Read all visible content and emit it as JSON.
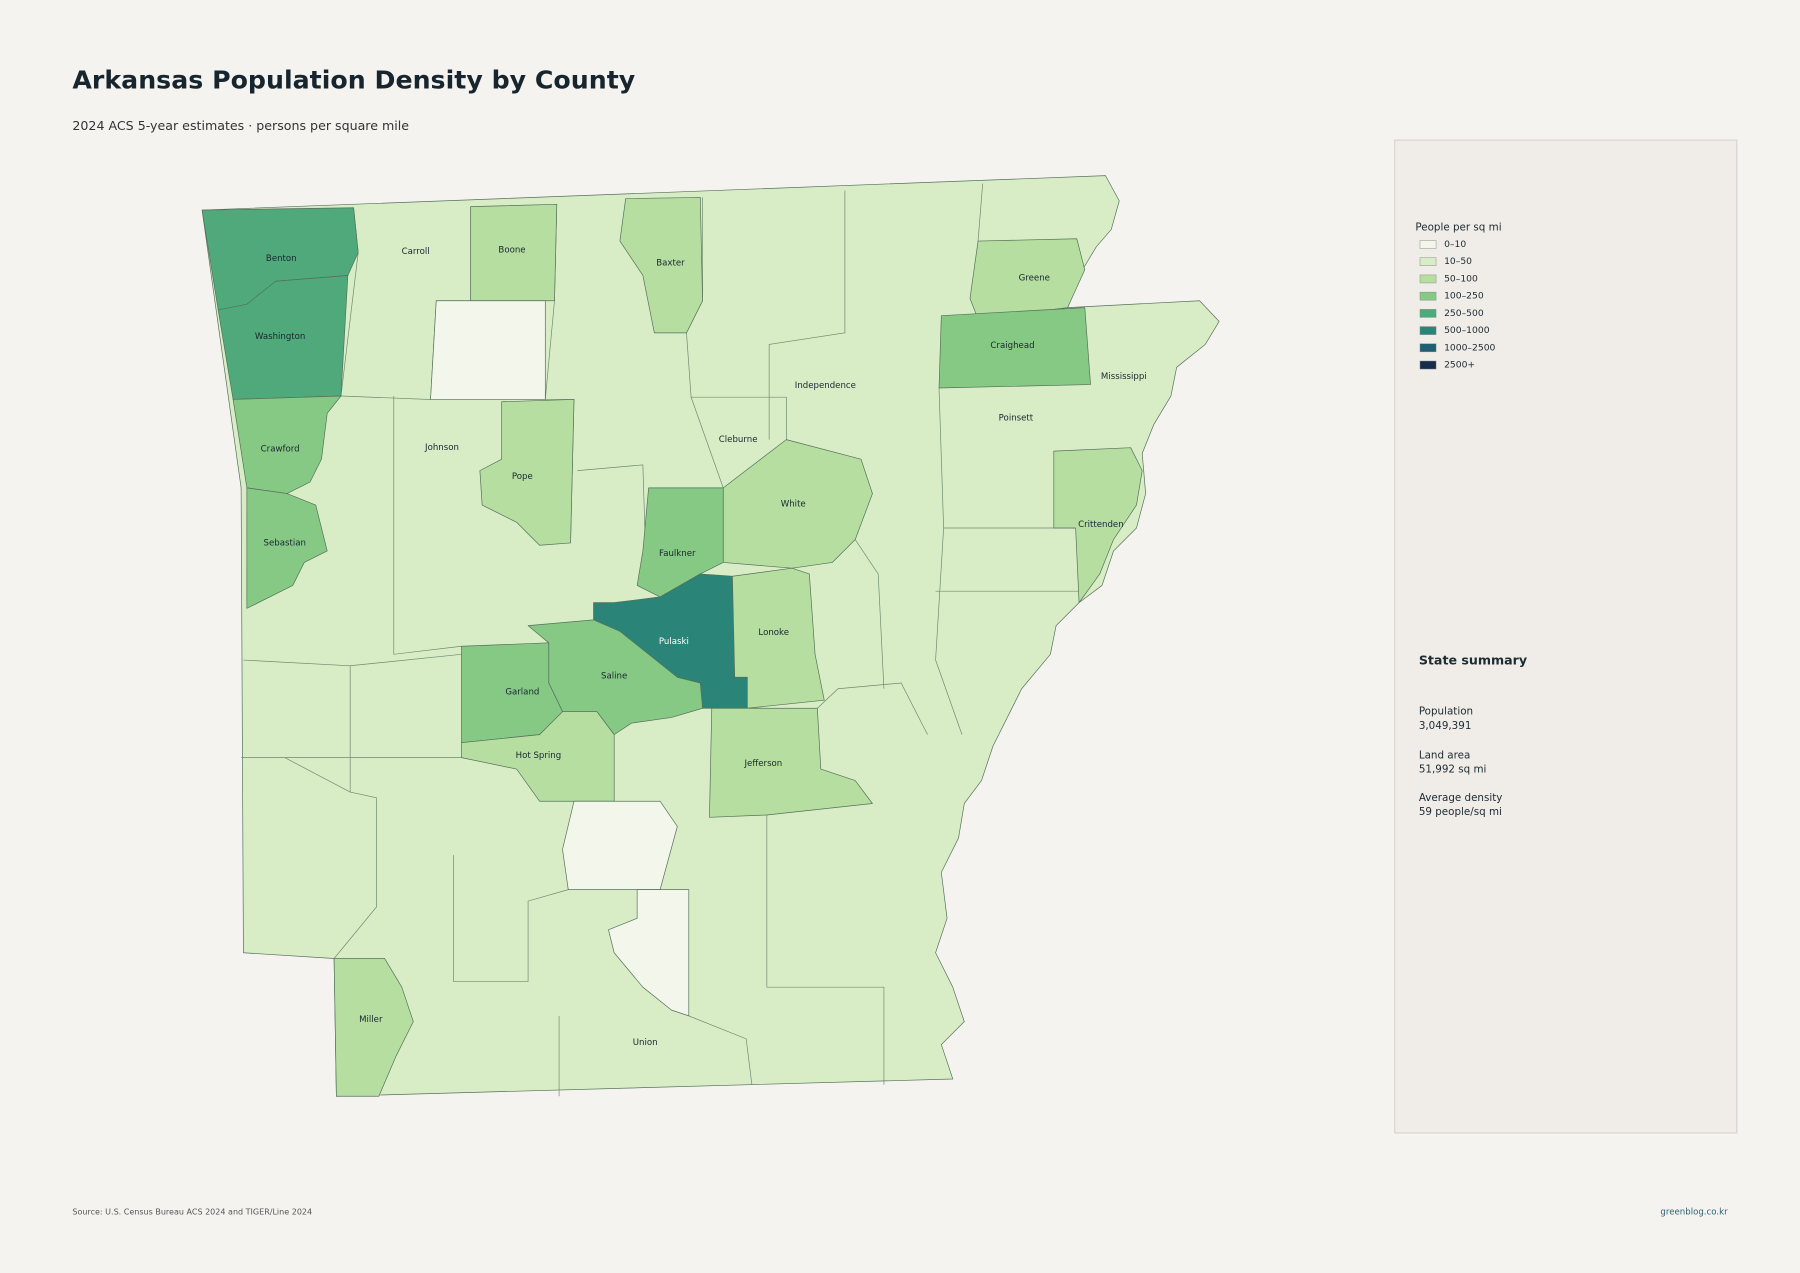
{
  "title": "Arkansas Population Density by County",
  "subtitle": "2024 ACS 5-year estimates · persons per square mile",
  "legend": {
    "title": "People per sq mi",
    "classes": [
      {
        "label": "0–10",
        "color": "#f3f6ea"
      },
      {
        "label": "10–50",
        "color": "#d8edc6"
      },
      {
        "label": "50–100",
        "color": "#b5dea0"
      },
      {
        "label": "100–250",
        "color": "#85c985"
      },
      {
        "label": "250–500",
        "color": "#4fa97a"
      },
      {
        "label": "500–1000",
        "color": "#2a8478"
      },
      {
        "label": "1000–2500",
        "color": "#1e5f73"
      },
      {
        "label": "2500+",
        "color": "#152c4a"
      }
    ]
  },
  "counties": [
    {
      "name": "Benton",
      "class": 4
    },
    {
      "name": "Washington",
      "class": 4
    },
    {
      "name": "Crawford",
      "class": 3
    },
    {
      "name": "Sebastian",
      "class": 3
    },
    {
      "name": "Boone",
      "class": 2
    },
    {
      "name": "Baxter",
      "class": 2
    },
    {
      "name": null,
      "class": 0
    },
    {
      "name": "Greene",
      "class": 2
    },
    {
      "name": "Craighead",
      "class": 3
    },
    {
      "name": "Pope",
      "class": 2
    },
    {
      "name": "White",
      "class": 2
    },
    {
      "name": "Faulkner",
      "class": 3
    },
    {
      "name": "Pulaski",
      "class": 5
    },
    {
      "name": "Lonoke",
      "class": 2
    },
    {
      "name": "Saline",
      "class": 3
    },
    {
      "name": "Garland",
      "class": 3
    },
    {
      "name": "Hot Spring",
      "class": 2
    },
    {
      "name": "Jefferson",
      "class": 2
    },
    {
      "name": "Crittenden",
      "class": 2
    },
    {
      "name": "Miller",
      "class": 2
    },
    {
      "name": null,
      "class": 0
    },
    {
      "name": null,
      "class": 0
    },
    {
      "name": "Carroll",
      "class": 1
    },
    {
      "name": "Johnson",
      "class": 1
    },
    {
      "name": "Cleburne",
      "class": 1
    },
    {
      "name": "Independence",
      "class": 1
    },
    {
      "name": "Mississippi",
      "class": 1
    },
    {
      "name": "Poinsett",
      "class": 1
    },
    {
      "name": "Union",
      "class": 1
    }
  ],
  "summary": {
    "title": "State summary",
    "items": [
      {
        "label": "Population",
        "value": "3,049,391"
      },
      {
        "label": "Land area",
        "value": "51,992 sq mi"
      },
      {
        "label": "Average density",
        "value": "59 people/sq mi"
      }
    ]
  },
  "source": "Source: U.S. Census Bureau ACS 2024 and TIGER/Line 2024",
  "credit": "greenblog.co.kr"
}
